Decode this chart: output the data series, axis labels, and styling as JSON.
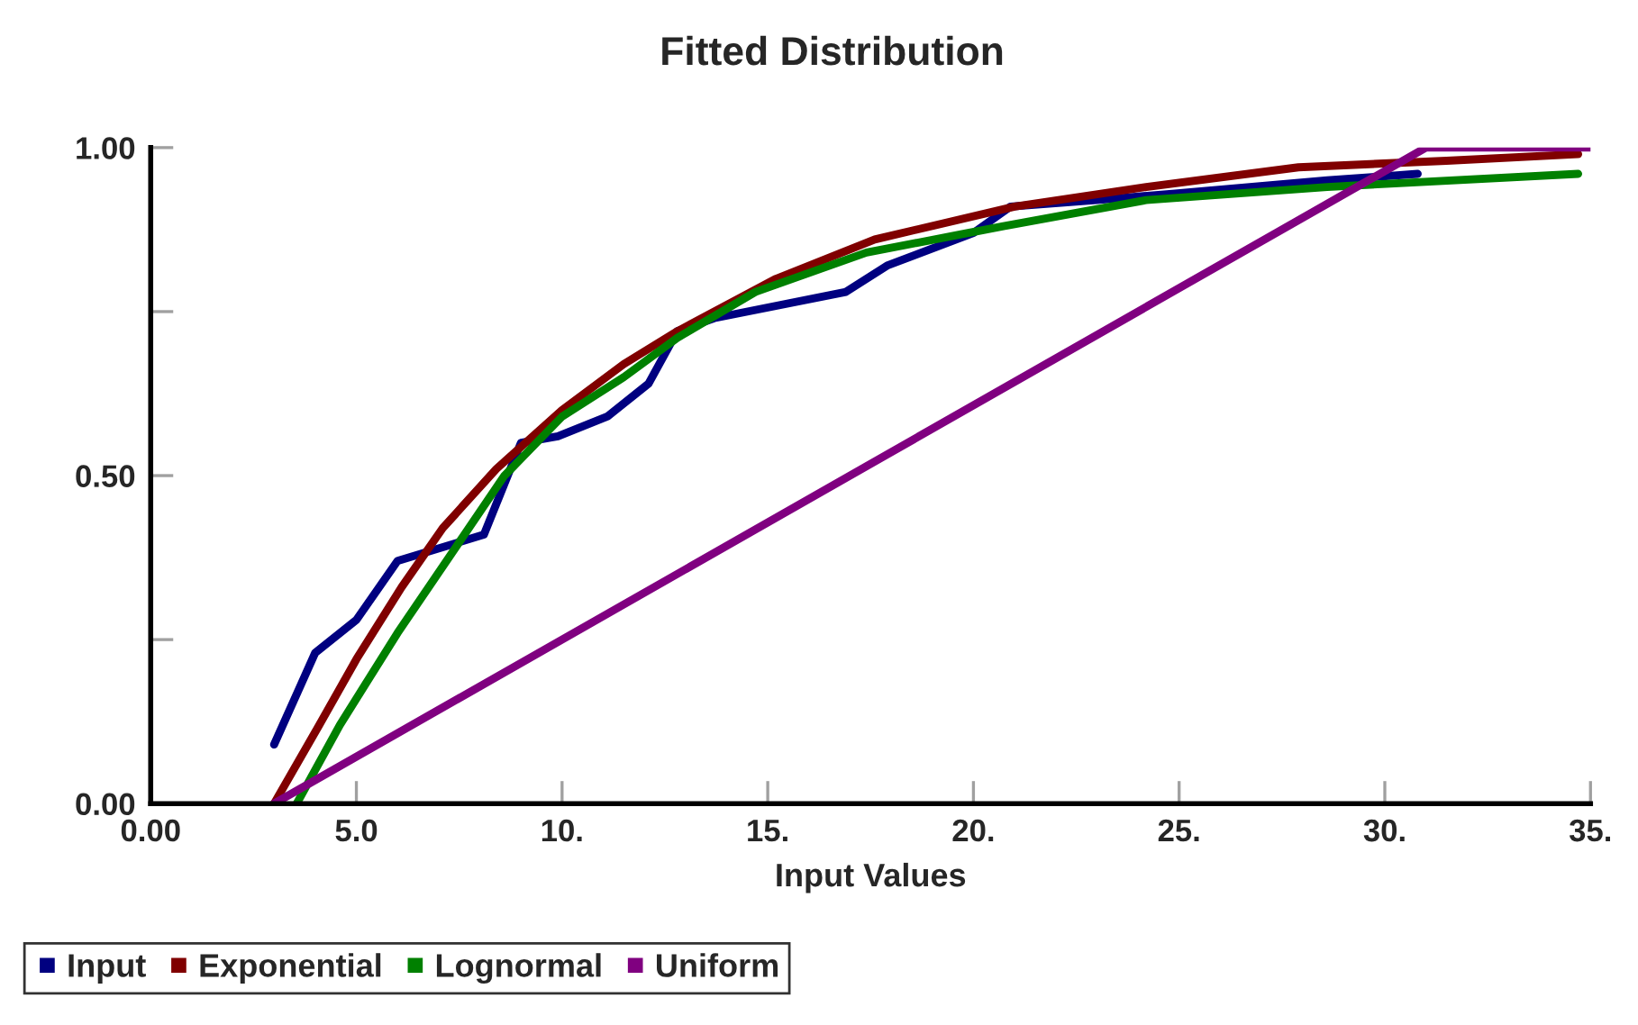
{
  "chart_data": {
    "type": "line",
    "title": "Fitted Distribution",
    "xlabel": "Input Values",
    "xlim": [
      0,
      35
    ],
    "xticks": [
      {
        "value": 0,
        "label": "0.00"
      },
      {
        "value": 5,
        "label": "5.0"
      },
      {
        "value": 10,
        "label": "10."
      },
      {
        "value": 15,
        "label": "15."
      },
      {
        "value": 20,
        "label": "20."
      },
      {
        "value": 25,
        "label": "25."
      },
      {
        "value": 30,
        "label": "30."
      },
      {
        "value": 35,
        "label": "35."
      }
    ],
    "ylim": [
      0,
      1
    ],
    "yticks": [
      {
        "value": 0,
        "label": "0.00"
      },
      {
        "value": 0.25,
        "label": null
      },
      {
        "value": 0.5,
        "label": "0.50"
      },
      {
        "value": 0.75,
        "label": null
      },
      {
        "value": 1,
        "label": "1.00"
      }
    ],
    "grid": false,
    "legend": "bottom",
    "marker": "none",
    "line_style": "solid",
    "series": [
      {
        "name": "Input",
        "color": "#000080",
        "x": [
          3.0,
          4.0,
          5.0,
          6.0,
          8.1,
          9.0,
          9.9,
          11.1,
          12.1,
          12.8,
          13.7,
          16.9,
          17.9,
          20.0,
          20.9,
          23.0,
          24.9,
          28.6,
          30.8
        ],
        "values": [
          0.09,
          0.23,
          0.28,
          0.37,
          0.41,
          0.55,
          0.56,
          0.59,
          0.64,
          0.72,
          0.74,
          0.78,
          0.82,
          0.87,
          0.91,
          0.92,
          0.93,
          0.95,
          0.96
        ]
      },
      {
        "name": "Exponential",
        "color": "#800000",
        "x": [
          3.0,
          4.1,
          5.0,
          6.1,
          7.1,
          8.4,
          10.0,
          11.5,
          12.8,
          15.2,
          17.6,
          21.0,
          24.2,
          27.9,
          31.5,
          34.7
        ],
        "values": [
          0.0,
          0.12,
          0.22,
          0.33,
          0.42,
          0.51,
          0.6,
          0.67,
          0.72,
          0.8,
          0.86,
          0.91,
          0.94,
          0.97,
          0.98,
          0.99
        ]
      },
      {
        "name": "Lognormal",
        "color": "#008000",
        "x": [
          3.55,
          4.6,
          6.0,
          7.3,
          8.6,
          10.0,
          11.5,
          12.8,
          14.7,
          17.4,
          20.7,
          24.2,
          28.6,
          34.7
        ],
        "values": [
          0.0,
          0.12,
          0.26,
          0.38,
          0.5,
          0.59,
          0.65,
          0.71,
          0.78,
          0.84,
          0.88,
          0.92,
          0.94,
          0.96
        ]
      },
      {
        "name": "Uniform",
        "color": "#800080",
        "x": [
          3.0,
          31.0,
          35.0
        ],
        "values": [
          0.0,
          1.0,
          1.0
        ]
      }
    ]
  }
}
